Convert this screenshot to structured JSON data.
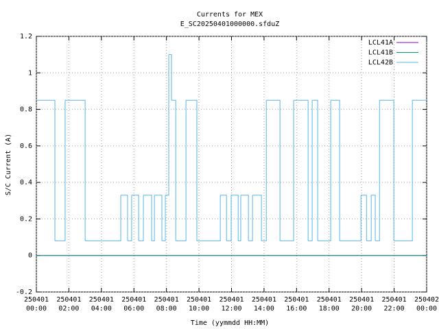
{
  "chart_data": {
    "type": "line",
    "step": true,
    "title": "Currents for MEX",
    "subtitle": "E_SC20250401000000.sfduZ",
    "x_label": "Time (yymmdd HH:MM)",
    "y_label": "S/C Current (A)",
    "xlim": [
      0,
      24
    ],
    "xticks": [
      {
        "value": 0,
        "label": "250401\n00:00"
      },
      {
        "value": 2,
        "label": "250401\n02:00"
      },
      {
        "value": 4,
        "label": "250401\n04:00"
      },
      {
        "value": 6,
        "label": "250401\n06:00"
      },
      {
        "value": 8,
        "label": "250401\n08:00"
      },
      {
        "value": 10,
        "label": "250401\n10:00"
      },
      {
        "value": 12,
        "label": "250401\n12:00"
      },
      {
        "value": 14,
        "label": "250401\n14:00"
      },
      {
        "value": 16,
        "label": "250401\n16:00"
      },
      {
        "value": 18,
        "label": "250401\n18:00"
      },
      {
        "value": 20,
        "label": "250401\n20:00"
      },
      {
        "value": 22,
        "label": "250401\n22:00"
      },
      {
        "value": 24,
        "label": "250402\n00:00"
      }
    ],
    "ylim": [
      -0.2,
      1.2
    ],
    "yticks": [
      -0.2,
      0,
      0.2,
      0.4,
      0.6,
      0.8,
      1,
      1.2
    ],
    "grid": true,
    "legend": "top-right",
    "series": [
      {
        "name": "LCL41A",
        "color": "#9400d3",
        "x": [
          0,
          24
        ],
        "values": [
          0,
          0
        ]
      },
      {
        "name": "LCL41B",
        "color": "#009e73",
        "x": [
          0,
          24
        ],
        "values": [
          0,
          0
        ]
      },
      {
        "name": "LCL42B",
        "color": "#56b4e9",
        "x": [
          0,
          1.14,
          1.77,
          3.0,
          5.19,
          5.61,
          5.86,
          6.29,
          6.58,
          7.09,
          7.26,
          7.72,
          7.93,
          8.14,
          8.31,
          8.57,
          9.2,
          9.87,
          11.31,
          11.69,
          11.98,
          12.41,
          12.57,
          13.04,
          13.29,
          13.84,
          14.14,
          14.98,
          15.82,
          16.71,
          16.96,
          17.3,
          18.1,
          18.65,
          19.96,
          20.3,
          20.59,
          20.84,
          21.1,
          21.98,
          23.12,
          24
        ],
        "values": [
          0.85,
          0.08,
          0.85,
          0.08,
          0.33,
          0.08,
          0.33,
          0.08,
          0.33,
          0.08,
          0.33,
          0.08,
          0.33,
          1.1,
          0.85,
          0.08,
          0.85,
          0.08,
          0.33,
          0.08,
          0.33,
          0.08,
          0.33,
          0.08,
          0.33,
          0.08,
          0.85,
          0.08,
          0.85,
          0.08,
          0.85,
          0.08,
          0.85,
          0.08,
          0.33,
          0.08,
          0.33,
          0.08,
          0.85,
          0.08,
          0.85,
          0.85
        ]
      }
    ]
  }
}
